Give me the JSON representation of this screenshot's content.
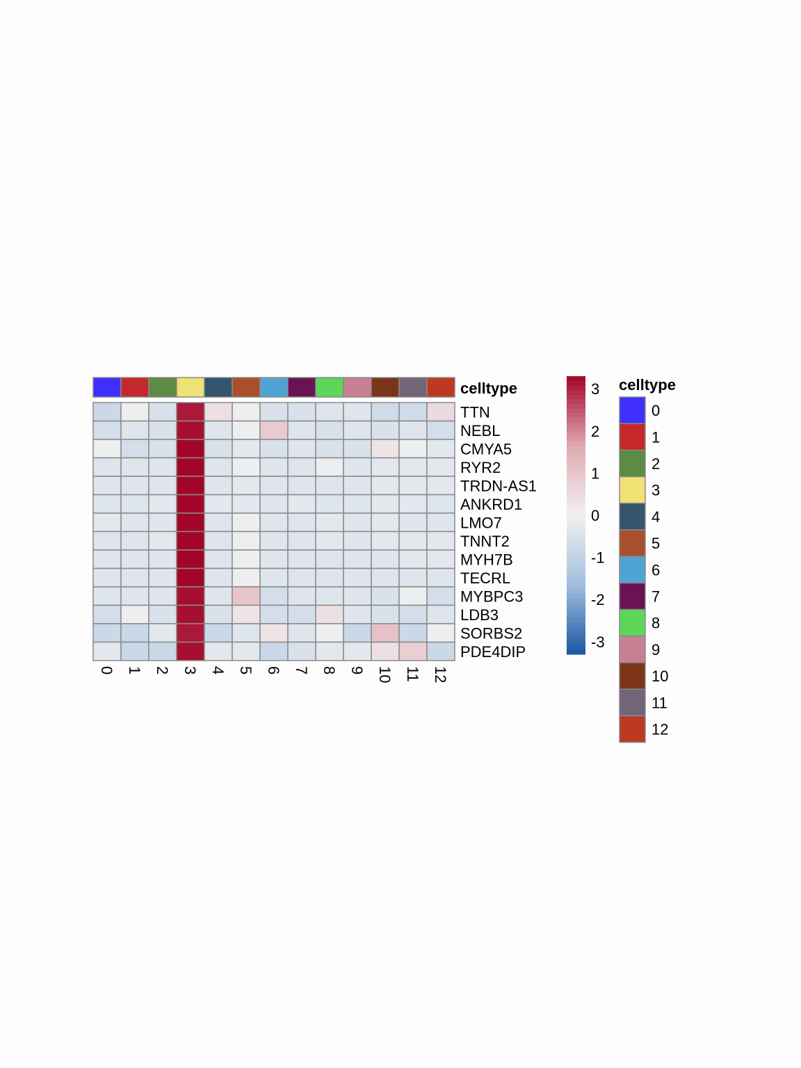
{
  "chart_data": {
    "type": "heatmap",
    "annotation_label": "celltype",
    "legend_title": "celltype",
    "columns": [
      "0",
      "1",
      "2",
      "3",
      "4",
      "5",
      "6",
      "7",
      "8",
      "9",
      "10",
      "11",
      "12"
    ],
    "rows": [
      "TTN",
      "NEBL",
      "CMYA5",
      "RYR2",
      "TRDN-AS1",
      "ANKRD1",
      "LMO7",
      "TNNT2",
      "MYH7B",
      "TECRL",
      "MYBPC3",
      "LDB3",
      "SORBS2",
      "PDE4DIP"
    ],
    "values": [
      [
        -0.8,
        -0.1,
        -0.5,
        3.1,
        0.4,
        -0.1,
        -0.5,
        -0.5,
        -0.4,
        -0.4,
        -0.7,
        -0.7,
        0.5
      ],
      [
        -0.6,
        -0.4,
        -0.5,
        3.2,
        -0.4,
        -0.1,
        0.9,
        -0.4,
        -0.5,
        -0.4,
        -0.5,
        -0.4,
        -0.6
      ],
      [
        -0.1,
        -0.6,
        -0.5,
        3.3,
        -0.5,
        -0.3,
        -0.5,
        -0.4,
        -0.5,
        -0.5,
        0.3,
        -0.1,
        -0.3
      ],
      [
        -0.4,
        -0.4,
        -0.4,
        3.3,
        -0.4,
        -0.1,
        -0.4,
        -0.4,
        -0.1,
        -0.4,
        -0.3,
        -0.3,
        -0.3
      ],
      [
        -0.4,
        -0.4,
        -0.4,
        3.3,
        -0.4,
        -0.3,
        -0.4,
        -0.4,
        -0.4,
        -0.4,
        -0.3,
        -0.3,
        -0.3
      ],
      [
        -0.4,
        -0.4,
        -0.3,
        3.3,
        -0.3,
        -0.3,
        -0.4,
        -0.3,
        -0.4,
        -0.4,
        -0.3,
        -0.3,
        -0.4
      ],
      [
        -0.3,
        -0.4,
        -0.4,
        3.3,
        -0.4,
        -0.1,
        -0.4,
        -0.4,
        -0.3,
        -0.4,
        -0.3,
        -0.4,
        -0.4
      ],
      [
        -0.4,
        -0.4,
        -0.3,
        3.3,
        -0.4,
        -0.1,
        -0.4,
        -0.4,
        -0.3,
        -0.4,
        -0.3,
        -0.3,
        -0.3
      ],
      [
        -0.4,
        -0.4,
        -0.4,
        3.3,
        -0.4,
        -0.1,
        -0.4,
        -0.4,
        -0.4,
        -0.4,
        -0.4,
        -0.3,
        -0.3
      ],
      [
        -0.4,
        -0.4,
        -0.4,
        3.3,
        -0.4,
        -0.1,
        -0.4,
        -0.4,
        -0.4,
        -0.4,
        -0.4,
        -0.4,
        -0.4
      ],
      [
        -0.4,
        -0.4,
        -0.4,
        3.2,
        -0.4,
        1.0,
        -0.6,
        -0.4,
        -0.4,
        -0.4,
        -0.5,
        -0.1,
        -0.6
      ],
      [
        -0.6,
        -0.1,
        -0.5,
        3.2,
        -0.5,
        0.3,
        -0.6,
        -0.6,
        0.4,
        -0.4,
        -0.5,
        -0.6,
        -0.4
      ],
      [
        -0.8,
        -0.8,
        -0.3,
        3.1,
        -0.8,
        -0.4,
        0.3,
        -0.4,
        -0.1,
        -0.8,
        1.1,
        -0.8,
        -0.1
      ],
      [
        -0.3,
        -0.8,
        -0.8,
        3.2,
        -0.3,
        -0.3,
        -0.8,
        -0.5,
        -0.3,
        -0.3,
        0.4,
        0.8,
        -0.8
      ]
    ],
    "column_colors": [
      "#3f2ffc",
      "#c4282a",
      "#5d8a44",
      "#efe174",
      "#35546e",
      "#a8502d",
      "#4fa4d6",
      "#6b1255",
      "#5dd65a",
      "#c97f93",
      "#7b3419",
      "#726578",
      "#bc3a21"
    ],
    "colorbar": {
      "ticks": [
        3,
        2,
        1,
        0,
        -1,
        -2,
        -3
      ],
      "tick_labels": [
        "3",
        "2",
        "1",
        "0",
        "-1",
        "-2",
        "-3"
      ],
      "range": [
        -3.3,
        3.3
      ]
    },
    "colorscale": [
      "#1c56a3",
      "#a2bede",
      "#f1f1f1",
      "#e0a9b2",
      "#a3042a"
    ]
  }
}
